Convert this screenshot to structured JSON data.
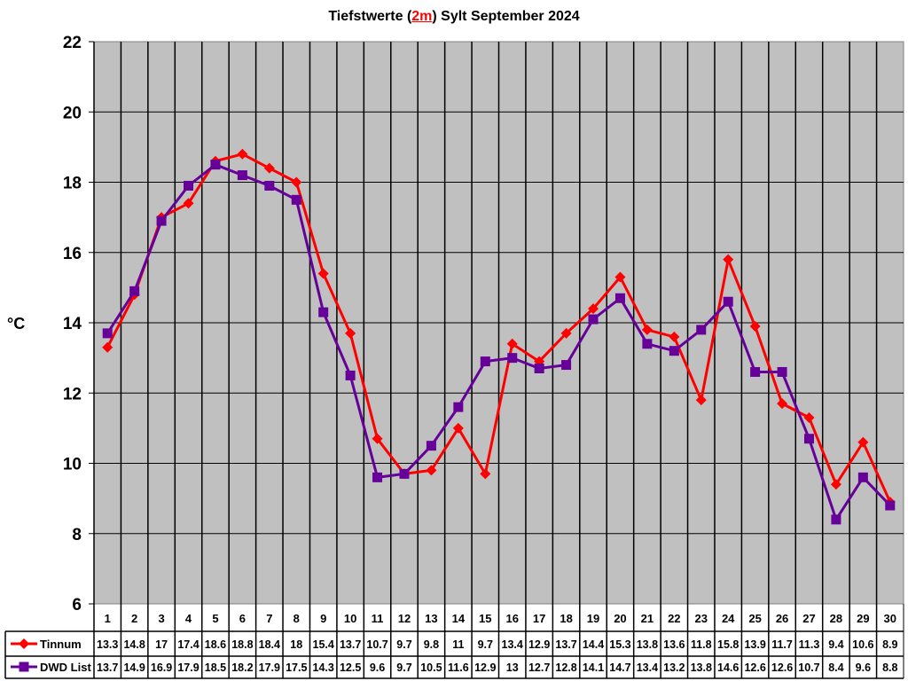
{
  "title": {
    "prefix": "Tiefstwerte (",
    "highlight": "2m",
    "suffix": ") Sylt September 2024"
  },
  "colors": {
    "plot_bg": "#c0c0c0",
    "grid": "#000000",
    "tinnum": "#ff0000",
    "dwd": "#660099"
  },
  "chart_data": {
    "type": "line",
    "title": "Tiefstwerte (2m) Sylt September 2024",
    "xlabel": "",
    "ylabel": "°C",
    "ylim": [
      6,
      22
    ],
    "yticks": [
      6,
      8,
      10,
      12,
      14,
      16,
      18,
      20,
      22
    ],
    "grid": true,
    "legend_position": "data-table",
    "categories": [
      "1",
      "2",
      "3",
      "4",
      "5",
      "6",
      "7",
      "8",
      "9",
      "10",
      "11",
      "12",
      "13",
      "14",
      "15",
      "16",
      "17",
      "18",
      "19",
      "20",
      "21",
      "22",
      "23",
      "24",
      "25",
      "26",
      "27",
      "28",
      "29",
      "30"
    ],
    "series": [
      {
        "name": "Tinnum",
        "marker": "diamond",
        "color": "#ff0000",
        "values": [
          13.3,
          14.8,
          17,
          17.4,
          18.6,
          18.8,
          18.4,
          18,
          15.4,
          13.7,
          10.7,
          9.7,
          9.8,
          11,
          9.7,
          13.4,
          12.9,
          13.7,
          14.4,
          15.3,
          13.8,
          13.6,
          11.8,
          15.8,
          13.9,
          11.7,
          11.3,
          9.4,
          10.6,
          8.9
        ]
      },
      {
        "name": "DWD List",
        "marker": "square",
        "color": "#660099",
        "values": [
          13.7,
          14.9,
          16.9,
          17.9,
          18.5,
          18.2,
          17.9,
          17.5,
          14.3,
          12.5,
          9.6,
          9.7,
          10.5,
          11.6,
          12.9,
          13,
          12.7,
          12.8,
          14.1,
          14.7,
          13.4,
          13.2,
          13.8,
          14.6,
          12.6,
          12.6,
          10.7,
          8.4,
          9.6,
          8.8
        ]
      }
    ]
  }
}
